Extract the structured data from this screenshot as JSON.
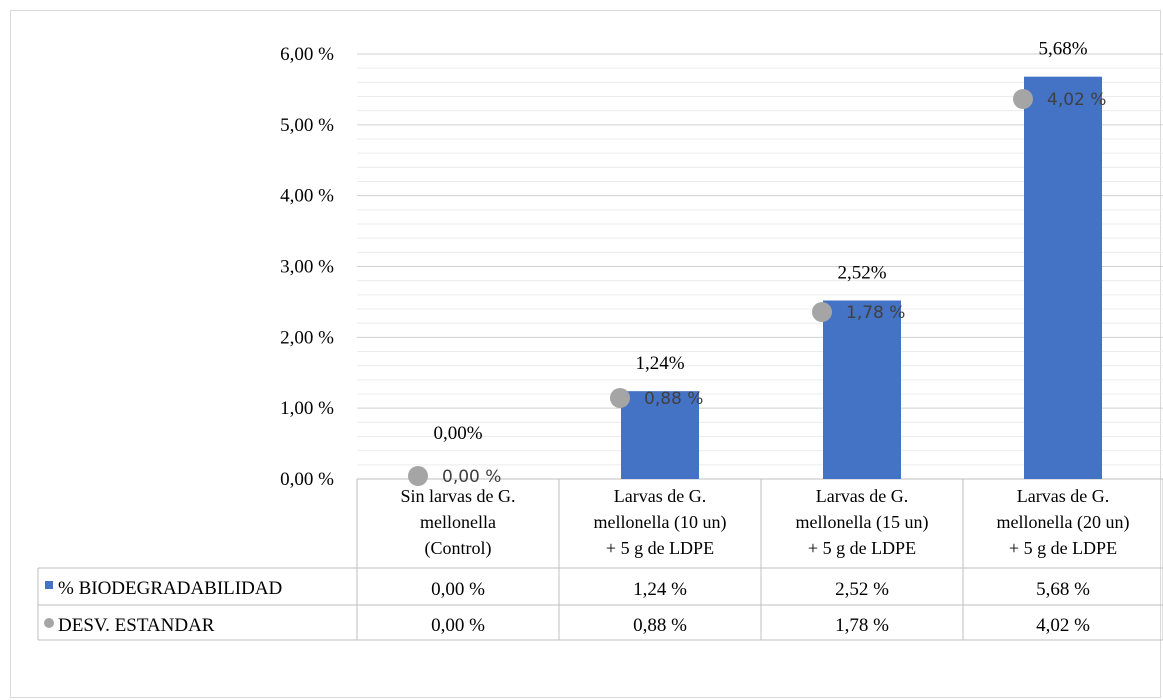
{
  "chart_data": {
    "type": "bar",
    "categories": [
      [
        "Sin larvas de G.",
        "mellonella",
        "(Control)"
      ],
      [
        "Larvas de G.",
        "mellonella (10 un)",
        "+ 5 g de LDPE"
      ],
      [
        "Larvas de G.",
        "mellonella (15 un)",
        "+ 5 g de LDPE"
      ],
      [
        "Larvas de G.",
        "mellonella (20 un)",
        "+ 5 g de LDPE"
      ]
    ],
    "ylim": [
      0,
      6
    ],
    "yticks": [
      0,
      1,
      2,
      3,
      4,
      5,
      6
    ],
    "ytick_labels": [
      "0,00 %",
      "1,00 %",
      "2,00 %",
      "3,00 %",
      "4,00 %",
      "5,00 %",
      "6,00 %"
    ],
    "grid": true,
    "series": [
      {
        "name": "% BIODEGRADABILIDAD",
        "kind": "bar",
        "color": "#4472c4",
        "values": [
          0.0,
          1.24,
          2.52,
          5.68
        ],
        "data_labels": [
          "0,00%",
          "1,24%",
          "2,52%",
          "5,68%"
        ],
        "table_values": [
          "0,00 %",
          "1,24 %",
          "2,52 %",
          "5,68 %"
        ]
      },
      {
        "name": "DESV. ESTANDAR",
        "kind": "marker",
        "color": "#a5a5a5",
        "values": [
          0.0,
          0.88,
          1.78,
          4.02
        ],
        "data_labels": [
          "0,00 %",
          "0,88 %",
          "1,78 %",
          "4,02 %"
        ],
        "table_values": [
          "0,00 %",
          "0,88 %",
          "1,78 %",
          "4,02 %"
        ]
      }
    ],
    "legend": "data-table"
  }
}
